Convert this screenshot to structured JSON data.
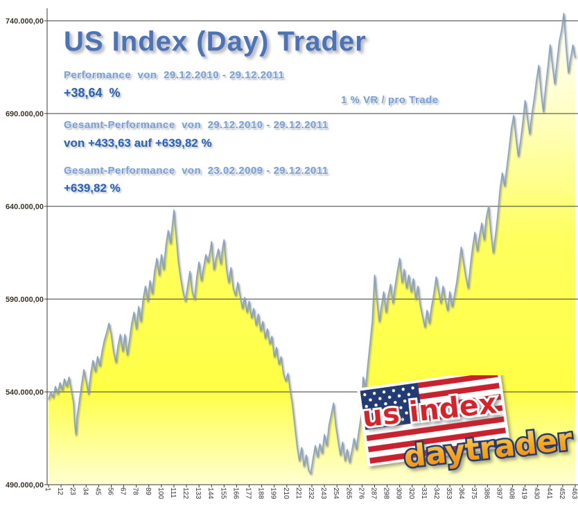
{
  "header": {
    "title": "US Index (Day) Trader",
    "perf_label": "Performance  von  29.12.2010 - 29.12.2011",
    "perf_value": "+38,64  %",
    "vr_note": "1 % VR / pro Trade",
    "gesamt1_label": "Gesamt-Performance  von  29.12.2010 - 29.12.2011",
    "gesamt1_value": "von +433,63 auf +639,82 %",
    "gesamt2_label": "Gesamt-Performance  von  23.02.2009 - 29.12.2011",
    "gesamt2_value": "+639,82 %"
  },
  "logo": {
    "line1": "us index",
    "line2": "daytrader"
  },
  "colors": {
    "title_blue": "#4b73b5",
    "label_blue": "#79a1d9",
    "value_blue": "#2b63b5",
    "area_yellow": "#ffff55",
    "line_blue": "#86a3c6",
    "grid": "#3a3a3a",
    "logo_red": "#d8242c",
    "logo_gold": "#f7a51b",
    "logo_navy": "#1f3a78"
  },
  "chart_data": {
    "type": "area",
    "title": "US Index (Day) Trader equity curve",
    "xlabel": "",
    "ylabel": "",
    "grid": "horizontal",
    "legend": "none",
    "ylim": [
      490000,
      740000
    ],
    "y_tick_values": [
      490000,
      540000,
      590000,
      640000,
      690000,
      740000
    ],
    "y_ticks": [
      "490.000,00",
      "540.000,00",
      "590.000,00",
      "640.000,00",
      "690.000,00",
      "740.000,00"
    ],
    "x_ticks": [
      1,
      12,
      23,
      34,
      45,
      56,
      67,
      78,
      89,
      100,
      111,
      122,
      133,
      144,
      155,
      166,
      177,
      188,
      199,
      210,
      221,
      232,
      243,
      254,
      265,
      276,
      287,
      298,
      309,
      320,
      331,
      342,
      353,
      364,
      375,
      386,
      397,
      408,
      419,
      430,
      441,
      452,
      463
    ],
    "x_label_rotation": 90,
    "points": [
      [
        1,
        536000
      ],
      [
        3,
        540000
      ],
      [
        5,
        537000
      ],
      [
        7,
        543000
      ],
      [
        9,
        539000
      ],
      [
        11,
        545000
      ],
      [
        13,
        541000
      ],
      [
        15,
        547000
      ],
      [
        17,
        543000
      ],
      [
        19,
        548000
      ],
      [
        21,
        541000
      ],
      [
        23,
        534000
      ],
      [
        24,
        523000
      ],
      [
        25,
        517000
      ],
      [
        26,
        526000
      ],
      [
        28,
        535000
      ],
      [
        30,
        544000
      ],
      [
        32,
        552000
      ],
      [
        34,
        546000
      ],
      [
        36,
        539000
      ],
      [
        38,
        550000
      ],
      [
        40,
        557000
      ],
      [
        42,
        551000
      ],
      [
        44,
        559000
      ],
      [
        46,
        554000
      ],
      [
        48,
        562000
      ],
      [
        50,
        568000
      ],
      [
        52,
        572000
      ],
      [
        54,
        577000
      ],
      [
        56,
        571000
      ],
      [
        58,
        562000
      ],
      [
        60,
        556000
      ],
      [
        62,
        565000
      ],
      [
        64,
        571000
      ],
      [
        66,
        562000
      ],
      [
        68,
        571000
      ],
      [
        70,
        560000
      ],
      [
        72,
        568000
      ],
      [
        74,
        577000
      ],
      [
        76,
        583000
      ],
      [
        78,
        574000
      ],
      [
        80,
        586000
      ],
      [
        82,
        578000
      ],
      [
        84,
        590000
      ],
      [
        86,
        597000
      ],
      [
        88,
        589000
      ],
      [
        90,
        600000
      ],
      [
        92,
        593000
      ],
      [
        94,
        605000
      ],
      [
        96,
        612000
      ],
      [
        98,
        603000
      ],
      [
        100,
        614000
      ],
      [
        102,
        606000
      ],
      [
        104,
        619000
      ],
      [
        106,
        627000
      ],
      [
        108,
        620000
      ],
      [
        110,
        632000
      ],
      [
        111,
        638000
      ],
      [
        113,
        624000
      ],
      [
        115,
        610000
      ],
      [
        117,
        601000
      ],
      [
        119,
        594000
      ],
      [
        121,
        589000
      ],
      [
        123,
        597000
      ],
      [
        125,
        605000
      ],
      [
        127,
        594000
      ],
      [
        129,
        590000
      ],
      [
        131,
        602000
      ],
      [
        133,
        610000
      ],
      [
        135,
        600000
      ],
      [
        137,
        607000
      ],
      [
        139,
        614000
      ],
      [
        141,
        610000
      ],
      [
        143,
        617000
      ],
      [
        144,
        621000
      ],
      [
        146,
        606000
      ],
      [
        148,
        612000
      ],
      [
        150,
        617000
      ],
      [
        152,
        609000
      ],
      [
        154,
        619000
      ],
      [
        155,
        622000
      ],
      [
        157,
        607000
      ],
      [
        159,
        599000
      ],
      [
        161,
        607000
      ],
      [
        163,
        596000
      ],
      [
        165,
        592000
      ],
      [
        167,
        599000
      ],
      [
        169,
        592000
      ],
      [
        171,
        585000
      ],
      [
        173,
        591000
      ],
      [
        175,
        583000
      ],
      [
        177,
        589000
      ],
      [
        179,
        580000
      ],
      [
        181,
        585000
      ],
      [
        183,
        576000
      ],
      [
        185,
        582000
      ],
      [
        187,
        573000
      ],
      [
        189,
        578000
      ],
      [
        191,
        569000
      ],
      [
        193,
        574000
      ],
      [
        195,
        566000
      ],
      [
        197,
        570000
      ],
      [
        199,
        559000
      ],
      [
        201,
        564000
      ],
      [
        203,
        555000
      ],
      [
        205,
        559000
      ],
      [
        207,
        550000
      ],
      [
        209,
        546000
      ],
      [
        211,
        550000
      ],
      [
        213,
        541000
      ],
      [
        215,
        533000
      ],
      [
        217,
        522000
      ],
      [
        219,
        511000
      ],
      [
        221,
        503000
      ],
      [
        223,
        510000
      ],
      [
        225,
        500000
      ],
      [
        227,
        506000
      ],
      [
        229,
        498000
      ],
      [
        231,
        496000
      ],
      [
        233,
        504000
      ],
      [
        235,
        511000
      ],
      [
        237,
        505000
      ],
      [
        239,
        512000
      ],
      [
        241,
        507000
      ],
      [
        243,
        517000
      ],
      [
        245,
        511000
      ],
      [
        247,
        522000
      ],
      [
        249,
        528000
      ],
      [
        251,
        534000
      ],
      [
        253,
        522000
      ],
      [
        255,
        514000
      ],
      [
        257,
        506000
      ],
      [
        259,
        513000
      ],
      [
        261,
        503000
      ],
      [
        263,
        509000
      ],
      [
        265,
        502000
      ],
      [
        267,
        508000
      ],
      [
        269,
        515000
      ],
      [
        271,
        509000
      ],
      [
        273,
        518000
      ],
      [
        275,
        526000
      ],
      [
        277,
        548000
      ],
      [
        279,
        541000
      ],
      [
        281,
        554000
      ],
      [
        283,
        566000
      ],
      [
        285,
        578000
      ],
      [
        287,
        603000
      ],
      [
        289,
        590000
      ],
      [
        291,
        578000
      ],
      [
        293,
        586000
      ],
      [
        295,
        594000
      ],
      [
        297,
        583000
      ],
      [
        299,
        592000
      ],
      [
        301,
        598000
      ],
      [
        303,
        588000
      ],
      [
        305,
        597000
      ],
      [
        307,
        605000
      ],
      [
        309,
        612000
      ],
      [
        311,
        599000
      ],
      [
        313,
        606000
      ],
      [
        315,
        596000
      ],
      [
        317,
        603000
      ],
      [
        319,
        594000
      ],
      [
        321,
        601000
      ],
      [
        323,
        590000
      ],
      [
        325,
        597000
      ],
      [
        327,
        587000
      ],
      [
        329,
        581000
      ],
      [
        331,
        575000
      ],
      [
        333,
        584000
      ],
      [
        335,
        577000
      ],
      [
        337,
        586000
      ],
      [
        339,
        593000
      ],
      [
        341,
        602000
      ],
      [
        343,
        595000
      ],
      [
        345,
        588000
      ],
      [
        347,
        597000
      ],
      [
        349,
        590000
      ],
      [
        351,
        584000
      ],
      [
        353,
        594000
      ],
      [
        355,
        586000
      ],
      [
        357,
        592000
      ],
      [
        359,
        599000
      ],
      [
        361,
        608000
      ],
      [
        363,
        618000
      ],
      [
        365,
        610000
      ],
      [
        367,
        602000
      ],
      [
        369,
        596000
      ],
      [
        371,
        608000
      ],
      [
        373,
        618000
      ],
      [
        375,
        626000
      ],
      [
        377,
        616000
      ],
      [
        379,
        624000
      ],
      [
        381,
        631000
      ],
      [
        383,
        622000
      ],
      [
        385,
        634000
      ],
      [
        387,
        640000
      ],
      [
        389,
        626000
      ],
      [
        391,
        615000
      ],
      [
        393,
        624000
      ],
      [
        395,
        635000
      ],
      [
        397,
        649000
      ],
      [
        399,
        658000
      ],
      [
        401,
        651000
      ],
      [
        403,
        661000
      ],
      [
        405,
        671000
      ],
      [
        407,
        682000
      ],
      [
        409,
        689000
      ],
      [
        411,
        677000
      ],
      [
        413,
        667000
      ],
      [
        415,
        675000
      ],
      [
        417,
        685000
      ],
      [
        419,
        697000
      ],
      [
        421,
        688000
      ],
      [
        423,
        679000
      ],
      [
        425,
        690000
      ],
      [
        427,
        698000
      ],
      [
        429,
        708000
      ],
      [
        431,
        716000
      ],
      [
        433,
        702000
      ],
      [
        435,
        691000
      ],
      [
        437,
        704000
      ],
      [
        439,
        715000
      ],
      [
        441,
        727000
      ],
      [
        443,
        716000
      ],
      [
        445,
        706000
      ],
      [
        447,
        718000
      ],
      [
        449,
        729000
      ],
      [
        451,
        735000
      ],
      [
        453,
        744000
      ],
      [
        455,
        726000
      ],
      [
        457,
        712000
      ],
      [
        459,
        720000
      ],
      [
        461,
        727000
      ],
      [
        463,
        720000
      ]
    ]
  }
}
